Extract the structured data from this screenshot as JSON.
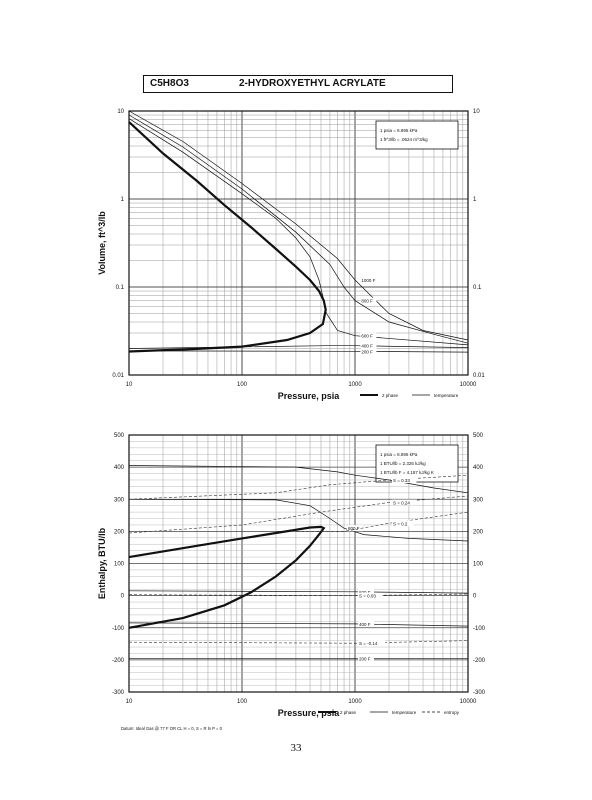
{
  "header": {
    "formula": "C5H8O3",
    "compound": "2-HYDROXYETHYL ACRYLATE"
  },
  "page_number": "33",
  "chart_data": [
    {
      "type": "line",
      "xscale": "log",
      "yscale": "log",
      "xlim": [
        10,
        10000
      ],
      "ylim": [
        0.01,
        10
      ],
      "xlabel": "Pressure,  psia",
      "ylabel": "Volume, ft^3/lb",
      "x_ticks": [
        "10",
        "100",
        "1000",
        "10000"
      ],
      "y_ticks": [
        "0.01",
        "0.1",
        "1",
        "10"
      ],
      "notes": [
        "1 psia  =  6.895 kPa",
        "1 ft^3/lb  =  .0624 m^3/kg"
      ],
      "legend": [
        "2 phase",
        "temperature"
      ],
      "grid": true,
      "legend_position": "bottom-right",
      "series": [
        {
          "role": "two-phase",
          "label": "",
          "points": [
            [
              10,
              7.5
            ],
            [
              20,
              3.3
            ],
            [
              40,
              1.6
            ],
            [
              70,
              0.85
            ],
            [
              120,
              0.48
            ],
            [
              200,
              0.27
            ],
            [
              300,
              0.17
            ],
            [
              400,
              0.12
            ],
            [
              480,
              0.09
            ],
            [
              530,
              0.07
            ],
            [
              550,
              0.055
            ],
            [
              520,
              0.038
            ],
            [
              400,
              0.03
            ],
            [
              250,
              0.025
            ],
            [
              100,
              0.021
            ],
            [
              40,
              0.0198
            ],
            [
              10,
              0.0185
            ]
          ]
        },
        {
          "role": "isotherm",
          "label": "1000 F",
          "points": [
            [
              10,
              10
            ],
            [
              30,
              4.5
            ],
            [
              100,
              1.5
            ],
            [
              300,
              0.52
            ],
            [
              700,
              0.21
            ],
            [
              1000,
              0.12
            ],
            [
              2000,
              0.05
            ],
            [
              4000,
              0.032
            ],
            [
              10000,
              0.025
            ]
          ]
        },
        {
          "role": "isotherm",
          "label": "800 F",
          "points": [
            [
              10,
              9
            ],
            [
              30,
              3.9
            ],
            [
              100,
              1.3
            ],
            [
              300,
              0.42
            ],
            [
              600,
              0.18
            ],
            [
              800,
              0.1
            ],
            [
              1000,
              0.07
            ],
            [
              2000,
              0.04
            ],
            [
              5000,
              0.029
            ],
            [
              10000,
              0.023
            ]
          ]
        },
        {
          "role": "isotherm",
          "label": "600 F",
          "points": [
            [
              10,
              8.2
            ],
            [
              30,
              3.4
            ],
            [
              100,
              1.15
            ],
            [
              200,
              0.6
            ],
            [
              300,
              0.36
            ],
            [
              400,
              0.22
            ],
            [
              480,
              0.12
            ],
            [
              530,
              0.07
            ],
            [
              560,
              0.05
            ],
            [
              700,
              0.032
            ],
            [
              1000,
              0.028
            ],
            [
              10000,
              0.022
            ]
          ]
        },
        {
          "role": "isotherm",
          "label": "400 F",
          "points": [
            [
              10,
              0.02
            ],
            [
              550,
              0.0215
            ],
            [
              1000,
              0.0215
            ],
            [
              10000,
              0.0205
            ]
          ]
        },
        {
          "role": "isotherm",
          "label": "200 F",
          "points": [
            [
              10,
              0.0188
            ],
            [
              1000,
              0.0186
            ],
            [
              10000,
              0.0182
            ]
          ]
        }
      ]
    },
    {
      "type": "line",
      "xscale": "log",
      "yscale": "linear",
      "xlim": [
        10,
        10000
      ],
      "ylim": [
        -300,
        500
      ],
      "xlabel": "Pressure,  psia",
      "ylabel": "Enthalpy, BTU/lb",
      "x_ticks": [
        "10",
        "100",
        "1000",
        "10000"
      ],
      "y_ticks": [
        "-300",
        "-200",
        "-100",
        "0",
        "100",
        "200",
        "300",
        "400",
        "500"
      ],
      "notes": [
        "1 psia  =  6.895 kPa",
        "1 BTU/lb  =  2.326 kJ/kg",
        "1 BTU/lb F  =  4.187 kJ/kg K"
      ],
      "legend": [
        "2 phase",
        "temperature",
        "entropy"
      ],
      "datum": "Datum: Ideal Gas @ 77 F OR CL  H = 0,  S = R ln P = 0",
      "grid": true,
      "legend_position": "bottom-right",
      "series": [
        {
          "role": "two-phase",
          "label": "",
          "points": [
            [
              10,
              -100
            ],
            [
              30,
              -70
            ],
            [
              70,
              -30
            ],
            [
              120,
              10
            ],
            [
              200,
              60
            ],
            [
              300,
              110
            ],
            [
              400,
              155
            ],
            [
              480,
              190
            ],
            [
              530,
              210
            ],
            [
              500,
              214
            ],
            [
              400,
              212
            ],
            [
              200,
              195
            ],
            [
              100,
              178
            ],
            [
              40,
              155
            ],
            [
              10,
              120
            ]
          ]
        },
        {
          "role": "isotherm",
          "label": "1000 F",
          "points": [
            [
              10,
              405
            ],
            [
              300,
              400
            ],
            [
              700,
              385
            ],
            [
              1000,
              375
            ],
            [
              2000,
              360
            ],
            [
              5000,
              335
            ],
            [
              10000,
              320
            ]
          ]
        },
        {
          "role": "isotherm",
          "label": "800 F",
          "points": [
            [
              10,
              300
            ],
            [
              200,
              298
            ],
            [
              400,
              280
            ],
            [
              600,
              240
            ],
            [
              800,
              210
            ],
            [
              1200,
              190
            ],
            [
              3000,
              178
            ],
            [
              10000,
              170
            ]
          ]
        },
        {
          "role": "isotherm",
          "label": "600 F",
          "points": [
            [
              10,
              15
            ],
            [
              1000,
              12
            ],
            [
              10000,
              8
            ]
          ]
        },
        {
          "role": "isotherm",
          "label": "400 F",
          "points": [
            [
              10,
              -85
            ],
            [
              1000,
              -88
            ],
            [
              10000,
              -95
            ]
          ]
        },
        {
          "role": "isotherm",
          "label": "200 F",
          "points": [
            [
              10,
              -195
            ],
            [
              1000,
              -195
            ],
            [
              10000,
              -195
            ]
          ]
        },
        {
          "role": "entropy",
          "label": "S = 0.33",
          "points": [
            [
              10,
              300
            ],
            [
              200,
              320
            ],
            [
              600,
              345
            ],
            [
              2000,
              360
            ],
            [
              10000,
              375
            ]
          ]
        },
        {
          "role": "entropy",
          "label": "S = 0.24",
          "points": [
            [
              10,
              195
            ],
            [
              100,
              220
            ],
            [
              500,
              260
            ],
            [
              2000,
              290
            ],
            [
              10000,
              310
            ]
          ]
        },
        {
          "role": "entropy",
          "label": "S = 0.2",
          "points": [
            [
              300,
              200
            ],
            [
              800,
              200
            ],
            [
              2000,
              225
            ],
            [
              10000,
              260
            ]
          ]
        },
        {
          "role": "entropy",
          "label": "S = 0.03",
          "points": [
            [
              10,
              3
            ],
            [
              1000,
              0
            ],
            [
              10000,
              5
            ]
          ]
        },
        {
          "role": "entropy",
          "label": "S = -0.14",
          "points": [
            [
              10,
              -145
            ],
            [
              1000,
              -148
            ],
            [
              10000,
              -140
            ]
          ]
        }
      ]
    }
  ]
}
